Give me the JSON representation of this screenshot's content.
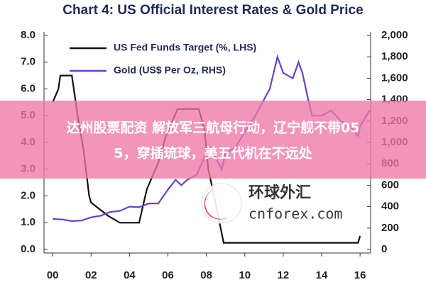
{
  "chart_data": {
    "type": "line",
    "title": "Chart 4: US Official Interest Rates & Gold Price",
    "xlim": [
      -0.45,
      16.55
    ],
    "xticks": [
      {
        "value": 0,
        "label": "00"
      },
      {
        "value": 2,
        "label": "02"
      },
      {
        "value": 4,
        "label": "04"
      },
      {
        "value": 6,
        "label": "06"
      },
      {
        "value": 8,
        "label": "08"
      },
      {
        "value": 10,
        "label": "10"
      },
      {
        "value": 12,
        "label": "12"
      },
      {
        "value": 14,
        "label": "14"
      },
      {
        "value": 16,
        "label": "16"
      }
    ],
    "ylim": [
      0,
      8
    ],
    "yticks": [
      {
        "value": 0,
        "label": "0.0"
      },
      {
        "value": 1,
        "label": "1.0"
      },
      {
        "value": 2,
        "label": "2.0"
      },
      {
        "value": 3,
        "label": "3.0"
      },
      {
        "value": 4,
        "label": "4.0"
      },
      {
        "value": 5,
        "label": "5.0"
      },
      {
        "value": 6,
        "label": "6.0"
      },
      {
        "value": 7,
        "label": "7.0"
      },
      {
        "value": 8,
        "label": "8.0"
      }
    ],
    "y2lim": [
      0,
      2000
    ],
    "y2ticks": [
      0,
      200,
      400,
      600,
      800,
      {
        "value": 1000,
        "label": "1,000"
      },
      {
        "value": 1200,
        "label": "1,200"
      },
      {
        "value": 1400,
        "label": "1,400"
      },
      {
        "value": 1600,
        "label": "1,600"
      },
      {
        "value": 1800,
        "label": "1,800"
      },
      {
        "value": 2000,
        "label": "2,000"
      }
    ],
    "series": [
      {
        "name": "US Fed Funds Target (%, LHS)",
        "color": "#111111",
        "x": [
          0,
          0.3,
          0.4,
          1.0,
          1.3,
          1.6,
          1.9,
          2.0,
          2.9,
          3.5,
          4.5,
          4.9,
          5.5,
          5.9,
          6.5,
          7.6,
          7.9,
          8.1,
          8.4,
          8.9,
          15.9,
          16.0
        ],
        "values": [
          5.5,
          6.0,
          6.5,
          6.5,
          5.0,
          3.75,
          2.0,
          1.75,
          1.25,
          1.0,
          1.0,
          2.25,
          3.25,
          4.25,
          5.25,
          5.25,
          4.5,
          3.0,
          2.0,
          0.25,
          0.25,
          0.5
        ]
      },
      {
        "name": "Gold (US$ Per Oz, RHS)",
        "color": "#6a3fd0",
        "axis": "y2",
        "x": [
          0,
          0.5,
          1,
          1.5,
          2,
          2.5,
          3,
          3.5,
          4,
          4.5,
          5,
          5.5,
          6,
          6.4,
          6.7,
          7,
          7.5,
          8,
          8.2,
          8.8,
          9,
          9.5,
          10,
          10.5,
          11,
          11.3,
          11.7,
          12,
          12.5,
          12.8,
          13,
          13.3,
          13.5,
          14,
          14.5,
          15,
          15.5,
          15.9,
          16,
          16.5
        ],
        "values": [
          285,
          280,
          265,
          270,
          300,
          315,
          350,
          360,
          400,
          395,
          430,
          430,
          560,
          650,
          600,
          650,
          700,
          900,
          950,
          750,
          900,
          950,
          1100,
          1230,
          1400,
          1500,
          1800,
          1650,
          1600,
          1750,
          1650,
          1400,
          1250,
          1250,
          1300,
          1200,
          1150,
          1060,
          1150,
          1300
        ]
      }
    ]
  },
  "banner": {
    "lines": [
      "达州股票配资 解放军三航母行动，辽宁舰不带05",
      "5，穿插琉球，美五代机在不远处"
    ]
  },
  "watermark": {
    "name": "环球外汇",
    "domain": "cnforex.com"
  }
}
